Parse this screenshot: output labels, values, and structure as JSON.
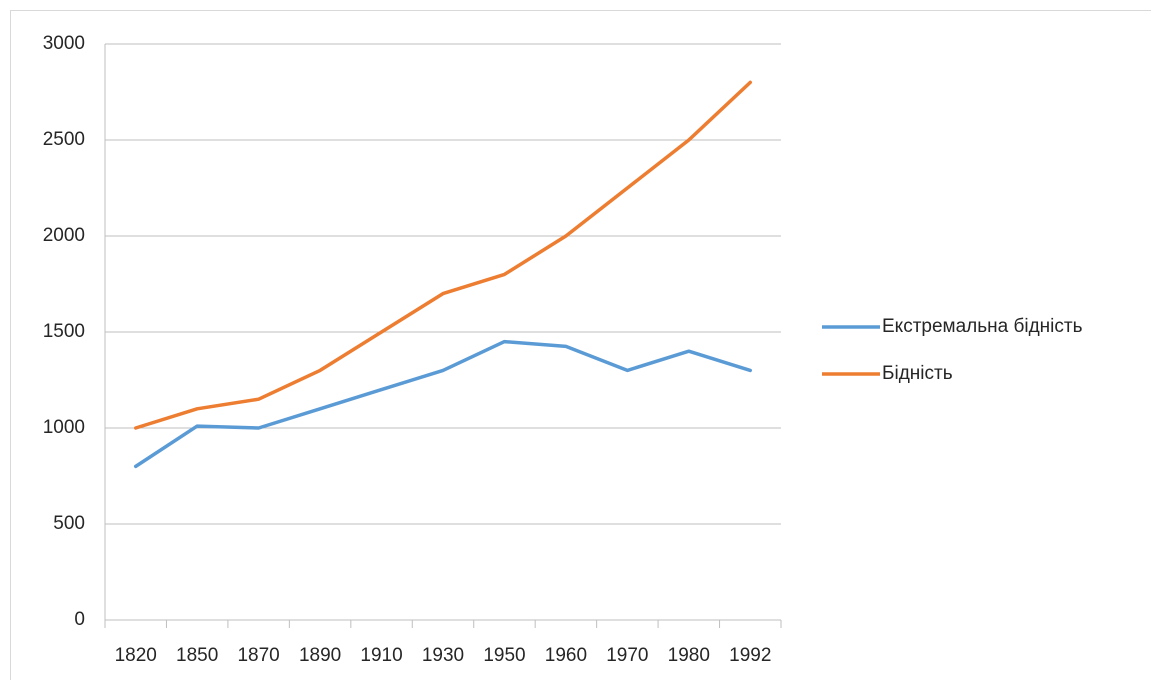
{
  "chart_data": {
    "type": "line",
    "categories": [
      "1820",
      "1850",
      "1870",
      "1890",
      "1910",
      "1930",
      "1950",
      "1960",
      "1970",
      "1980",
      "1992"
    ],
    "series": [
      {
        "name": "Екстремальна бідність",
        "color": "#5b9bd5",
        "values": [
          800,
          1010,
          1000,
          1100,
          1200,
          1300,
          1450,
          1425,
          1300,
          1400,
          1300
        ]
      },
      {
        "name": "Бідність",
        "color": "#ed7d31",
        "values": [
          1000,
          1100,
          1150,
          1300,
          1500,
          1700,
          1800,
          2000,
          2250,
          2500,
          2800
        ]
      }
    ],
    "ylim": [
      0,
      3000
    ],
    "yticks": [
      0,
      500,
      1000,
      1500,
      2000,
      2500,
      3000
    ],
    "grid": true,
    "legend": "right"
  }
}
